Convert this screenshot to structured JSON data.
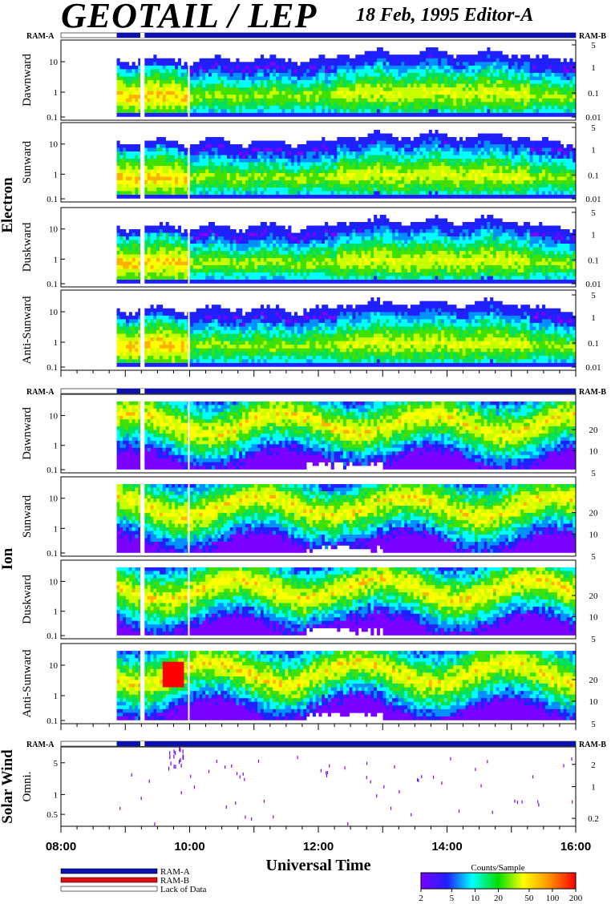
{
  "header": {
    "title": "GEOTAIL / LEP",
    "date_editor": "18 Feb, 1995   Editor-A"
  },
  "groups": [
    {
      "label": "Electron"
    },
    {
      "label": "Ion"
    },
    {
      "label": "Solar Wind"
    }
  ],
  "ram_labels": {
    "left": "RAM-A",
    "right": "RAM-B"
  },
  "x_axis": {
    "label": "Universal Time",
    "ticks": [
      "08:00",
      "10:00",
      "12:00",
      "14:00",
      "16:00"
    ]
  },
  "legend": {
    "items": [
      {
        "label": "RAM-A",
        "color": "#0a10b4"
      },
      {
        "label": "RAM-B",
        "color": "#e01010"
      },
      {
        "label": "Lack of Data",
        "color": "#ffffff"
      }
    ]
  },
  "colorbar": {
    "title": "Counts/Sample",
    "ticks": [
      "2",
      "5",
      "10",
      "20",
      "50",
      "100",
      "200"
    ],
    "range": [
      2,
      200
    ],
    "scale": "log"
  },
  "chart_data": {
    "type": "heatmap",
    "x_range": [
      "08:00",
      "16:00"
    ],
    "x_unit": "UT",
    "data_gaps_ut": [
      [
        "08:00",
        "08:52"
      ],
      [
        "09:14",
        "09:18"
      ]
    ],
    "panels": [
      {
        "group": "Electron",
        "label": "Dawnward",
        "left_ticks": [
          "10",
          "1",
          "0.1"
        ],
        "right_ticks": [
          "5",
          "1",
          "0.1",
          "0.01"
        ]
      },
      {
        "group": "Electron",
        "label": "Sunward",
        "left_ticks": [
          "10",
          "1",
          "0.1"
        ],
        "right_ticks": [
          "5",
          "1",
          "0.1",
          "0.01"
        ]
      },
      {
        "group": "Electron",
        "label": "Duskward",
        "left_ticks": [
          "10",
          "1",
          "0.1"
        ],
        "right_ticks": [
          "5",
          "1",
          "0.1",
          "0.01"
        ]
      },
      {
        "group": "Electron",
        "label": "Anti-Sunward",
        "left_ticks": [
          "10",
          "1",
          "0.1"
        ],
        "right_ticks": [
          "5",
          "1",
          "0.1",
          "0.01"
        ]
      },
      {
        "group": "Ion",
        "label": "Dawnward",
        "left_ticks": [
          "10",
          "1",
          "0.1"
        ],
        "right_ticks": [
          "20",
          "10",
          "5"
        ]
      },
      {
        "group": "Ion",
        "label": "Sunward",
        "left_ticks": [
          "10",
          "1",
          "0.1"
        ],
        "right_ticks": [
          "20",
          "10",
          "5"
        ]
      },
      {
        "group": "Ion",
        "label": "Duskward",
        "left_ticks": [
          "10",
          "1",
          "0.1"
        ],
        "right_ticks": [
          "20",
          "10",
          "5"
        ]
      },
      {
        "group": "Ion",
        "label": "Anti-Sunward",
        "left_ticks": [
          "10",
          "1",
          "0.1"
        ],
        "right_ticks": [
          "20",
          "10",
          "5"
        ]
      },
      {
        "group": "Solar Wind",
        "label": "Omni.",
        "left_ticks": [
          "5",
          "1",
          "0.5"
        ],
        "right_ticks": [
          "2",
          "1",
          "0.2"
        ]
      }
    ]
  }
}
